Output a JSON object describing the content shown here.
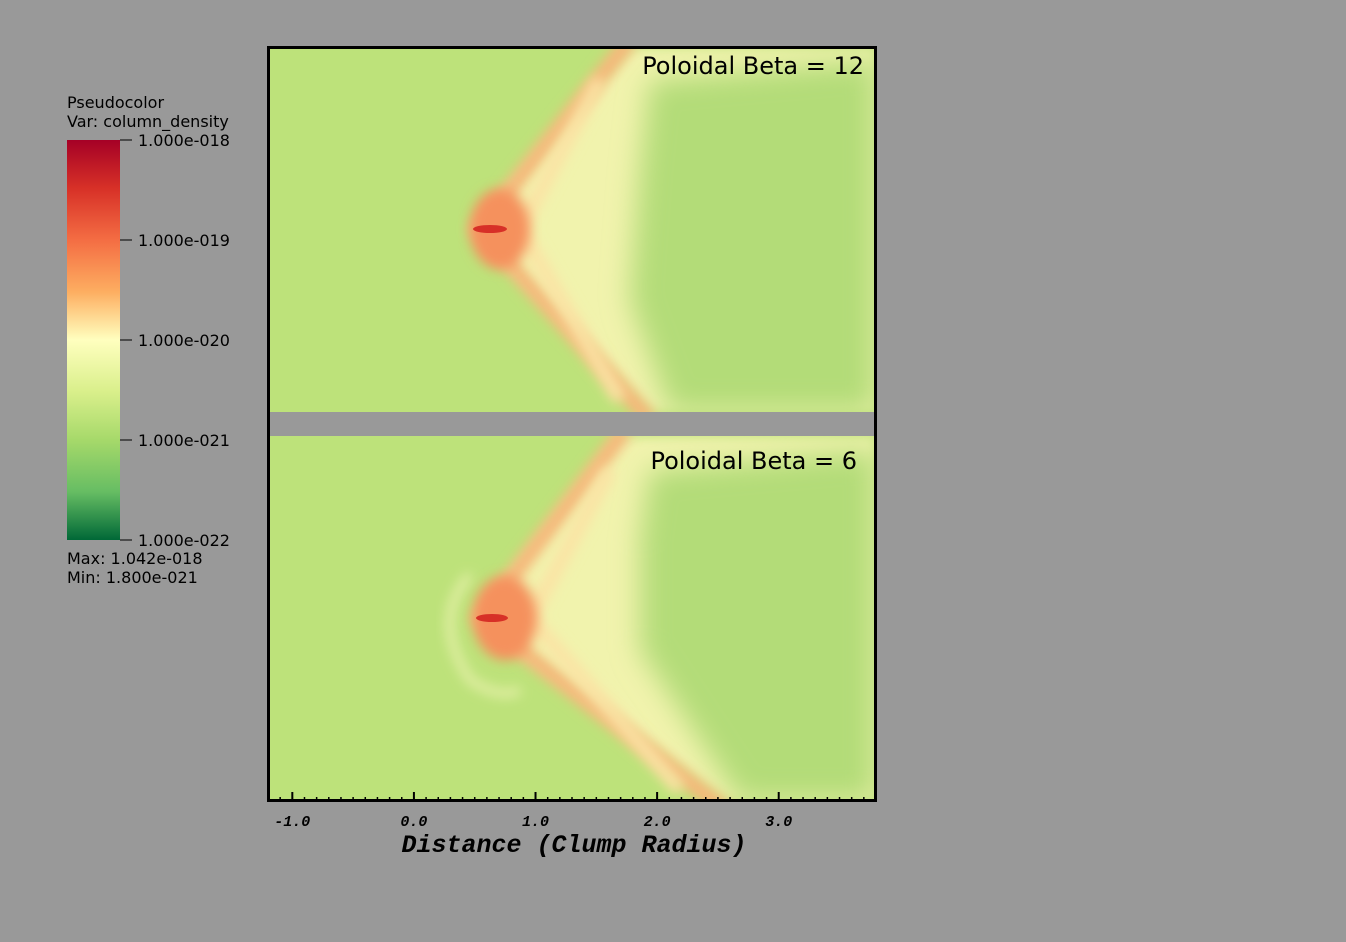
{
  "legend": {
    "title": "Pseudocolor",
    "variable": "Var: column_density",
    "ticks": [
      "1.000e-018",
      "1.000e-019",
      "1.000e-020",
      "1.000e-021",
      "1.000e-022"
    ],
    "max": "Max:  1.042e-018",
    "min": "Min:  1.800e-021"
  },
  "panels": [
    {
      "label": "Poloidal Beta = 12"
    },
    {
      "label": "Poloidal Beta =  6"
    }
  ],
  "x_axis": {
    "title": "Distance (Clump Radius)",
    "range": [
      -1.2,
      3.8
    ],
    "ticks": [
      {
        "value": -1,
        "label": "-1.0"
      },
      {
        "value": 0,
        "label": "0.0"
      },
      {
        "value": 1,
        "label": "1.0"
      },
      {
        "value": 2,
        "label": "2.0"
      },
      {
        "value": 3,
        "label": "3.0"
      }
    ]
  }
}
